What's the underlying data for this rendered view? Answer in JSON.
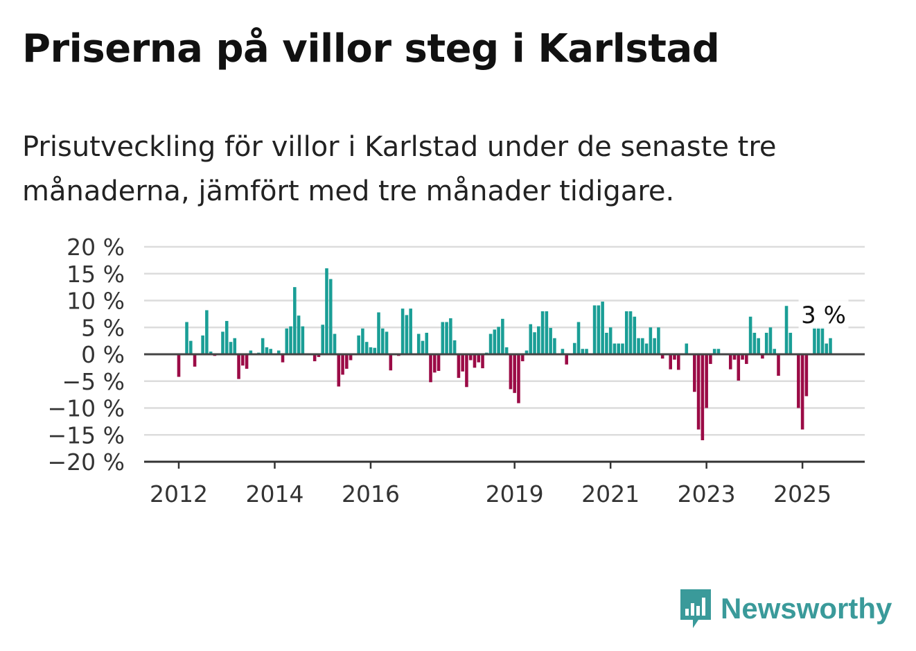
{
  "title": "Priserna på villor steg i Karlstad",
  "subtitle": "Prisutveckling för villor i Karlstad under de senaste tre månaderna, jämfört med tre månader tidigare.",
  "brand": {
    "name": "Newsworthy"
  },
  "colors": {
    "positive": "#1a9e96",
    "negative": "#9b0b46",
    "grid": "#dcdcdc",
    "brand": "#3a9a9a"
  },
  "annotation": {
    "label": "3 %"
  },
  "chart_data": {
    "type": "bar",
    "x_start": "2012-01",
    "y_ticks": [
      "20 %",
      "15 %",
      "10 %",
      "5 %",
      "0 %",
      "−5 %",
      "−10 %",
      "−15 %",
      "−20 %"
    ],
    "ylim": [
      -20,
      20
    ],
    "x_ticks": [
      "2012",
      "2014",
      "2016",
      "2019",
      "2021",
      "2023",
      "2025"
    ],
    "grid": true,
    "values": [
      -4.2,
      0,
      6,
      2.5,
      -2.3,
      0,
      3.5,
      8.2,
      0.5,
      -0.3,
      0,
      4.2,
      6.2,
      2.3,
      3,
      -4.6,
      -2.1,
      -2.7,
      0.7,
      0,
      0.3,
      3,
      1.3,
      1,
      0,
      0.7,
      -1.5,
      4.8,
      5.2,
      12.5,
      7.2,
      5.2,
      0,
      0,
      -1.3,
      -0.5,
      5.5,
      16,
      14,
      3.8,
      -6,
      -3.8,
      -2.7,
      -1.1,
      0,
      3.5,
      4.8,
      2.3,
      1.3,
      1.2,
      7.8,
      4.8,
      4.2,
      -3,
      0,
      -0.3,
      8.5,
      7.3,
      8.5,
      0,
      3.8,
      2.5,
      4,
      -5.2,
      -3.4,
      -3.1,
      6,
      6,
      6.7,
      2.6,
      -4.4,
      -3.2,
      -6.1,
      -1.1,
      -2.5,
      -1.5,
      -2.6,
      0.3,
      3.8,
      4.6,
      5.1,
      6.6,
      1.3,
      -6.5,
      -7.2,
      -9.1,
      -1.3,
      0.7,
      5.6,
      4.1,
      5.2,
      8,
      8,
      4.9,
      3,
      0,
      1,
      -1.9,
      0,
      2.1,
      6,
      1,
      1,
      0,
      9.1,
      9.1,
      9.8,
      4,
      5,
      2,
      2,
      2,
      8,
      8,
      7,
      3,
      3,
      2,
      5,
      3,
      5,
      -0.8,
      0,
      -2.8,
      -1,
      -2.9,
      0,
      2,
      0,
      -7,
      -14,
      -16,
      -10,
      -1.8,
      1,
      1,
      0,
      0,
      -2.8,
      -1,
      -4.9,
      -1,
      -1.8,
      7,
      4,
      3,
      -0.8,
      4,
      5,
      1,
      -4,
      0,
      9,
      4,
      0,
      -10,
      -14,
      -7.8,
      0,
      5,
      5,
      5,
      2,
      3
    ]
  }
}
